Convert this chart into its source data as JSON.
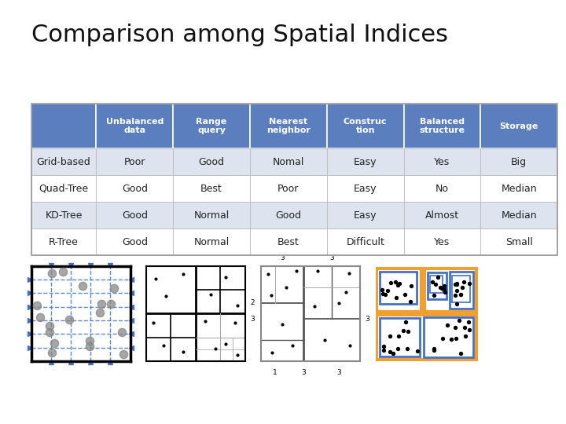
{
  "title": "Comparison among Spatial Indices",
  "title_fontsize": 22,
  "background_color": "#ffffff",
  "header_bg_color": "#5b7fbe",
  "header_text_color": "#ffffff",
  "row_text_color": "#222222",
  "col_headers": [
    "Unbalanced\ndata",
    "Range\nquery",
    "Nearest\nneighbor",
    "Construc\ntion",
    "Balanced\nstructure",
    "Storage"
  ],
  "row_headers": [
    "Grid-based",
    "Quad-Tree",
    "KD-Tree",
    "R-Tree"
  ],
  "table_data": [
    [
      "Poor",
      "Good",
      "Nomal",
      "Easy",
      "Yes",
      "Big"
    ],
    [
      "Good",
      "Best",
      "Poor",
      "Easy",
      "No",
      "Median"
    ],
    [
      "Good",
      "Normal",
      "Good",
      "Easy",
      "Almost",
      "Median"
    ],
    [
      "Good",
      "Normal",
      "Best",
      "Difficult",
      "Yes",
      "Small"
    ]
  ],
  "header_fontsize": 8,
  "cell_fontsize": 9,
  "alt_row_color": "#dde4f0",
  "white_row_color": "#ffffff",
  "orange_color": "#f0a030",
  "blue_color": "#4472c4"
}
